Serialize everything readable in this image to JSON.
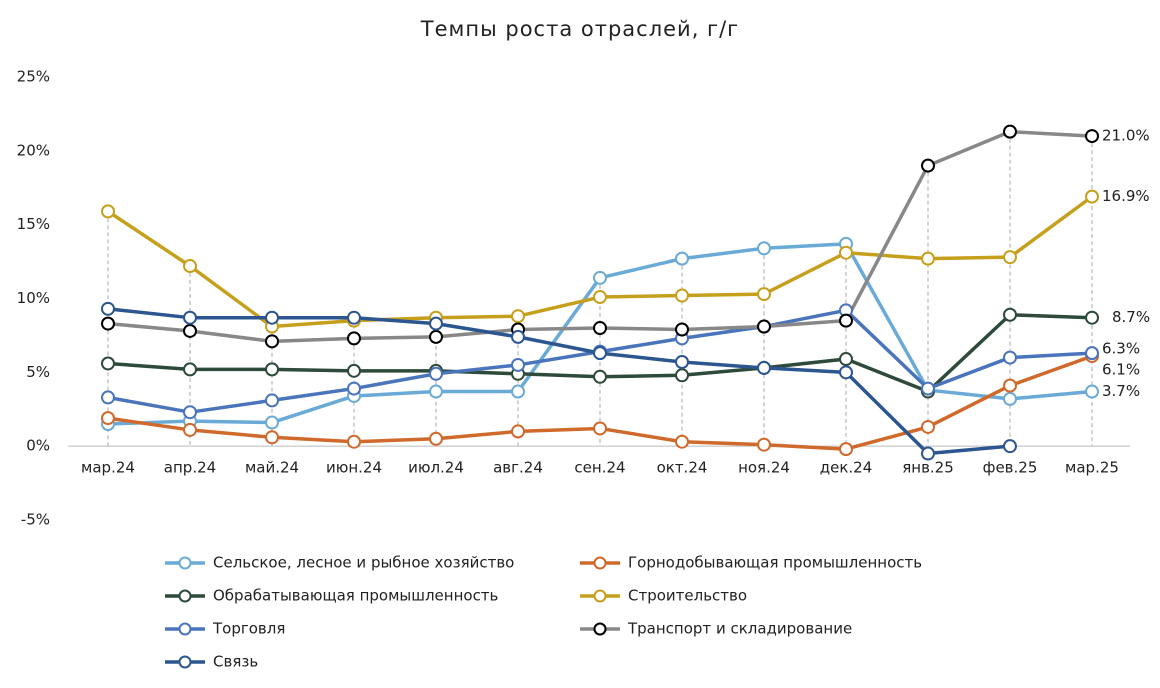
{
  "chart_data": {
    "type": "line",
    "title": "Темпы роста отраслей, г/г",
    "categories": [
      "мар.24",
      "апр.24",
      "май.24",
      "июн.24",
      "июл.24",
      "авг.24",
      "сен.24",
      "окт.24",
      "ноя.24",
      "дек.24",
      "янв.25",
      "фев.25",
      "мар.25"
    ],
    "ylim": [
      -5,
      25
    ],
    "yticks": [
      {
        "value": -5,
        "label": "-5%"
      },
      {
        "value": 0,
        "label": "0%"
      },
      {
        "value": 5,
        "label": "5%"
      },
      {
        "value": 10,
        "label": "10%"
      },
      {
        "value": 15,
        "label": "15%"
      },
      {
        "value": 20,
        "label": "20%"
      },
      {
        "value": 25,
        "label": "25%"
      }
    ],
    "series": [
      {
        "name": "Сельское, лесное и рыбное хозяйство",
        "color": "#6aaad6",
        "values": [
          1.5,
          1.7,
          1.6,
          3.4,
          3.7,
          3.7,
          11.4,
          12.7,
          13.4,
          13.7,
          3.8,
          3.2,
          3.7
        ],
        "value_labels": [
          null,
          null,
          null,
          null,
          null,
          null,
          null,
          null,
          null,
          null,
          null,
          null,
          "3.7%"
        ]
      },
      {
        "name": "Горнодобывающая промышленность",
        "color": "#d06a2c",
        "values": [
          1.9,
          1.1,
          0.6,
          0.3,
          0.5,
          1.0,
          1.2,
          0.3,
          0.1,
          -0.2,
          1.3,
          4.1,
          6.1
        ],
        "value_labels": [
          null,
          null,
          null,
          null,
          null,
          null,
          null,
          null,
          null,
          null,
          null,
          null,
          "6.1%"
        ]
      },
      {
        "name": "Обрабатывающая промышленность",
        "color": "#2d4a3a",
        "values": [
          5.6,
          5.2,
          5.2,
          5.1,
          5.1,
          4.9,
          4.7,
          4.8,
          5.3,
          5.9,
          3.7,
          8.9,
          8.7
        ],
        "value_labels": [
          null,
          null,
          null,
          null,
          null,
          null,
          null,
          null,
          null,
          null,
          null,
          null,
          "8.7%"
        ]
      },
      {
        "name": "Строительство",
        "color": "#c6a01c",
        "values": [
          15.9,
          12.2,
          8.1,
          8.5,
          8.7,
          8.8,
          10.1,
          10.2,
          10.3,
          13.1,
          12.7,
          12.8,
          16.9
        ],
        "value_labels": [
          null,
          null,
          null,
          null,
          null,
          null,
          null,
          null,
          null,
          null,
          null,
          null,
          "16.9%"
        ]
      },
      {
        "name": "Торговля",
        "color": "#4a74bb",
        "values": [
          3.3,
          2.3,
          3.1,
          3.9,
          4.9,
          5.5,
          6.4,
          7.3,
          8.1,
          9.2,
          3.9,
          6.0,
          6.3
        ],
        "value_labels": [
          null,
          null,
          null,
          null,
          null,
          null,
          null,
          null,
          null,
          null,
          null,
          null,
          "6.3%"
        ]
      },
      {
        "name": "Транспорт и складирование",
        "color": "#888888",
        "marker_color": "#000000",
        "values": [
          8.3,
          7.8,
          7.1,
          7.3,
          7.4,
          7.9,
          8.0,
          7.9,
          8.1,
          8.5,
          19.0,
          21.3,
          21.0
        ],
        "value_labels": [
          null,
          null,
          null,
          null,
          null,
          null,
          null,
          null,
          null,
          null,
          null,
          null,
          "21.0%"
        ]
      },
      {
        "name": "Связь",
        "color": "#2c5690",
        "values": [
          9.3,
          8.7,
          8.7,
          8.7,
          8.3,
          7.4,
          6.3,
          5.7,
          5.3,
          5.0,
          -0.5,
          0.0,
          null
        ]
      }
    ]
  }
}
